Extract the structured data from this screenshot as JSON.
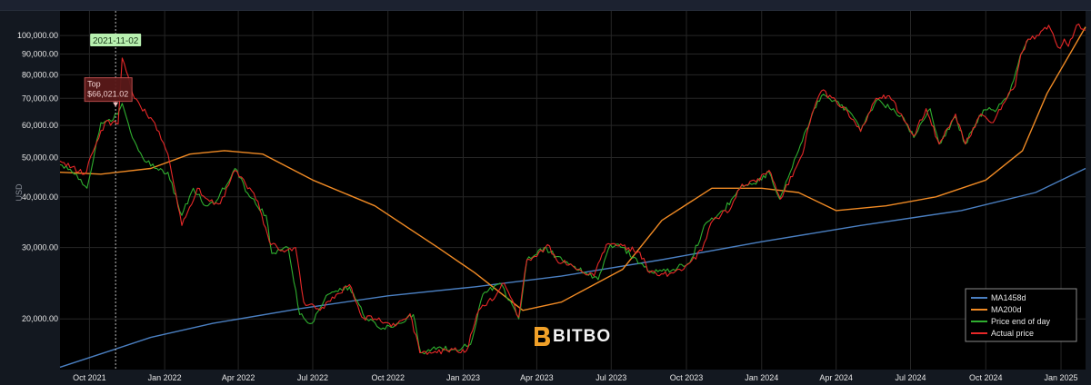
{
  "chart_data": {
    "type": "line",
    "ylabel": "USD",
    "y_scale": "log",
    "ylim": [
      15000,
      115000
    ],
    "xlim": [
      "2021-08-26",
      "2025-01-31"
    ],
    "y_ticks": [
      {
        "value": 20000,
        "label": "20,000.00"
      },
      {
        "value": 30000,
        "label": "30,000.00"
      },
      {
        "value": 40000,
        "label": "40,000.00"
      },
      {
        "value": 50000,
        "label": "50,000.00"
      },
      {
        "value": 60000,
        "label": "60,000.00"
      },
      {
        "value": 70000,
        "label": "70,000.00"
      },
      {
        "value": 80000,
        "label": "80,000.00"
      },
      {
        "value": 90000,
        "label": "90,000.00"
      },
      {
        "value": 100000,
        "label": "100,000.00"
      }
    ],
    "x_ticks": [
      {
        "date": "2021-10-01",
        "label": "Oct 2021"
      },
      {
        "date": "2022-01-01",
        "label": "Jan 2022"
      },
      {
        "date": "2022-04-01",
        "label": "Apr 2022"
      },
      {
        "date": "2022-07-01",
        "label": "Jul 2022"
      },
      {
        "date": "2022-10-01",
        "label": "Oct 2022"
      },
      {
        "date": "2023-01-01",
        "label": "Jan 2023"
      },
      {
        "date": "2023-04-01",
        "label": "Apr 2023"
      },
      {
        "date": "2023-07-01",
        "label": "Jul 2023"
      },
      {
        "date": "2023-10-01",
        "label": "Oct 2023"
      },
      {
        "date": "2024-01-01",
        "label": "Jan 2024"
      },
      {
        "date": "2024-04-01",
        "label": "Apr 2024"
      },
      {
        "date": "2024-07-01",
        "label": "Jul 2024"
      },
      {
        "date": "2024-10-01",
        "label": "Oct 2024"
      },
      {
        "date": "2025-01-01",
        "label": "Jan 2025"
      }
    ],
    "grid": true,
    "legend_position": "bottom-right",
    "series": [
      {
        "name": "MA1458d",
        "color": "#4a7fc1",
        "points": [
          [
            "2021-08-26",
            15200
          ],
          [
            "2021-10-15",
            16400
          ],
          [
            "2021-12-15",
            18000
          ],
          [
            "2022-03-01",
            19500
          ],
          [
            "2022-06-15",
            21200
          ],
          [
            "2022-10-01",
            22800
          ],
          [
            "2023-01-15",
            24000
          ],
          [
            "2023-05-01",
            25500
          ],
          [
            "2023-09-01",
            28000
          ],
          [
            "2024-01-01",
            31000
          ],
          [
            "2024-05-01",
            34000
          ],
          [
            "2024-09-01",
            37000
          ],
          [
            "2024-12-01",
            41000
          ],
          [
            "2025-01-31",
            47000
          ]
        ]
      },
      {
        "name": "MA200d",
        "color": "#f08a24",
        "points": [
          [
            "2021-08-26",
            46000
          ],
          [
            "2021-10-15",
            45500
          ],
          [
            "2021-12-15",
            47000
          ],
          [
            "2022-02-01",
            51000
          ],
          [
            "2022-03-15",
            52000
          ],
          [
            "2022-05-01",
            51000
          ],
          [
            "2022-07-01",
            44000
          ],
          [
            "2022-09-15",
            38000
          ],
          [
            "2022-12-01",
            30000
          ],
          [
            "2023-01-15",
            26000
          ],
          [
            "2023-03-15",
            21000
          ],
          [
            "2023-05-01",
            22000
          ],
          [
            "2023-07-15",
            26500
          ],
          [
            "2023-09-01",
            35000
          ],
          [
            "2023-11-01",
            42000
          ],
          [
            "2024-01-01",
            42000
          ],
          [
            "2024-02-15",
            41000
          ],
          [
            "2024-04-01",
            37000
          ],
          [
            "2024-06-01",
            38000
          ],
          [
            "2024-08-01",
            40000
          ],
          [
            "2024-10-01",
            44000
          ],
          [
            "2024-11-15",
            52000
          ],
          [
            "2024-12-15",
            72000
          ],
          [
            "2025-01-31",
            105000
          ]
        ]
      },
      {
        "name": "Price end of day",
        "color": "#2fae2f",
        "points": [
          [
            "2021-08-26",
            48000
          ],
          [
            "2021-09-10",
            46000
          ],
          [
            "2021-09-28",
            42000
          ],
          [
            "2021-10-15",
            61000
          ],
          [
            "2021-10-30",
            62000
          ],
          [
            "2021-11-10",
            68000
          ],
          [
            "2021-11-20",
            58000
          ],
          [
            "2021-12-05",
            50000
          ],
          [
            "2021-12-20",
            47000
          ],
          [
            "2022-01-05",
            46000
          ],
          [
            "2022-01-22",
            36000
          ],
          [
            "2022-02-05",
            42000
          ],
          [
            "2022-02-20",
            38000
          ],
          [
            "2022-03-05",
            39000
          ],
          [
            "2022-03-28",
            47000
          ],
          [
            "2022-04-15",
            40000
          ],
          [
            "2022-05-05",
            36000
          ],
          [
            "2022-05-12",
            29000
          ],
          [
            "2022-06-01",
            30000
          ],
          [
            "2022-06-15",
            20500
          ],
          [
            "2022-06-30",
            19500
          ],
          [
            "2022-07-20",
            23000
          ],
          [
            "2022-08-15",
            24000
          ],
          [
            "2022-09-05",
            20000
          ],
          [
            "2022-09-25",
            19000
          ],
          [
            "2022-10-15",
            19500
          ],
          [
            "2022-11-01",
            20500
          ],
          [
            "2022-11-10",
            16500
          ],
          [
            "2022-12-01",
            17000
          ],
          [
            "2022-12-20",
            16800
          ],
          [
            "2023-01-10",
            17300
          ],
          [
            "2023-01-25",
            23000
          ],
          [
            "2023-02-15",
            24500
          ],
          [
            "2023-03-10",
            20000
          ],
          [
            "2023-03-20",
            28000
          ],
          [
            "2023-04-10",
            30000
          ],
          [
            "2023-04-25",
            28500
          ],
          [
            "2023-05-15",
            27000
          ],
          [
            "2023-06-15",
            25000
          ],
          [
            "2023-06-30",
            30500
          ],
          [
            "2023-07-15",
            30000
          ],
          [
            "2023-08-20",
            26000
          ],
          [
            "2023-09-15",
            26500
          ],
          [
            "2023-10-05",
            27500
          ],
          [
            "2023-10-25",
            34500
          ],
          [
            "2023-11-15",
            37000
          ],
          [
            "2023-12-05",
            42000
          ],
          [
            "2023-12-25",
            43000
          ],
          [
            "2024-01-10",
            46000
          ],
          [
            "2024-01-23",
            39500
          ],
          [
            "2024-02-15",
            52000
          ],
          [
            "2024-03-05",
            66000
          ],
          [
            "2024-03-14",
            71000
          ],
          [
            "2024-04-01",
            69000
          ],
          [
            "2024-04-20",
            64000
          ],
          [
            "2024-05-01",
            58000
          ],
          [
            "2024-05-20",
            69000
          ],
          [
            "2024-06-10",
            66000
          ],
          [
            "2024-06-25",
            61000
          ],
          [
            "2024-07-05",
            56000
          ],
          [
            "2024-07-25",
            66000
          ],
          [
            "2024-08-05",
            54000
          ],
          [
            "2024-08-25",
            63000
          ],
          [
            "2024-09-06",
            54000
          ],
          [
            "2024-09-28",
            65500
          ],
          [
            "2024-10-15",
            66000
          ],
          [
            "2024-10-30",
            72000
          ],
          [
            "2024-11-12",
            89000
          ],
          [
            "2024-11-22",
            98000
          ]
        ]
      },
      {
        "name": "Actual price",
        "color": "#e62828",
        "points": [
          [
            "2021-08-26",
            49000
          ],
          [
            "2021-09-25",
            45500
          ],
          [
            "2021-10-20",
            61000
          ],
          [
            "2021-11-05",
            60500
          ],
          [
            "2021-11-10",
            88000
          ],
          [
            "2021-11-25",
            70000
          ],
          [
            "2021-12-10",
            64000
          ],
          [
            "2021-12-25",
            58000
          ],
          [
            "2022-01-05",
            51000
          ],
          [
            "2022-01-22",
            34000
          ],
          [
            "2022-02-10",
            42000
          ],
          [
            "2022-02-25",
            39000
          ],
          [
            "2022-03-10",
            38500
          ],
          [
            "2022-03-28",
            46500
          ],
          [
            "2022-04-10",
            43000
          ],
          [
            "2022-04-25",
            39000
          ],
          [
            "2022-05-09",
            31000
          ],
          [
            "2022-05-25",
            29500
          ],
          [
            "2022-06-10",
            30000
          ],
          [
            "2022-06-20",
            22000
          ],
          [
            "2022-07-10",
            21000
          ],
          [
            "2022-07-30",
            23000
          ],
          [
            "2022-08-15",
            24300
          ],
          [
            "2022-08-30",
            20200
          ],
          [
            "2022-09-15",
            20000
          ],
          [
            "2022-10-10",
            19200
          ],
          [
            "2022-10-28",
            20600
          ],
          [
            "2022-11-09",
            16500
          ],
          [
            "2022-11-25",
            16500
          ],
          [
            "2022-12-20",
            16800
          ],
          [
            "2023-01-05",
            16700
          ],
          [
            "2023-01-20",
            21000
          ],
          [
            "2023-02-10",
            22800
          ],
          [
            "2023-02-20",
            24500
          ],
          [
            "2023-03-10",
            20200
          ],
          [
            "2023-03-20",
            28000
          ],
          [
            "2023-04-01",
            28500
          ],
          [
            "2023-04-14",
            30500
          ],
          [
            "2023-04-25",
            28000
          ],
          [
            "2023-05-15",
            27000
          ],
          [
            "2023-06-10",
            25500
          ],
          [
            "2023-06-25",
            30500
          ],
          [
            "2023-07-15",
            30300
          ],
          [
            "2023-08-05",
            29200
          ],
          [
            "2023-08-17",
            26000
          ],
          [
            "2023-09-10",
            25800
          ],
          [
            "2023-09-25",
            26300
          ],
          [
            "2023-10-20",
            29500
          ],
          [
            "2023-10-31",
            34500
          ],
          [
            "2023-11-25",
            37800
          ],
          [
            "2023-12-08",
            43000
          ],
          [
            "2023-12-25",
            43500
          ],
          [
            "2024-01-10",
            46500
          ],
          [
            "2024-01-24",
            39500
          ],
          [
            "2024-02-20",
            51000
          ],
          [
            "2024-02-29",
            61000
          ],
          [
            "2024-03-05",
            66000
          ],
          [
            "2024-03-14",
            73000
          ],
          [
            "2024-04-01",
            69000
          ],
          [
            "2024-04-15",
            65000
          ],
          [
            "2024-05-01",
            58000
          ],
          [
            "2024-05-20",
            70000
          ],
          [
            "2024-06-05",
            71000
          ],
          [
            "2024-06-25",
            61000
          ],
          [
            "2024-07-05",
            56500
          ],
          [
            "2024-07-20",
            66000
          ],
          [
            "2024-08-05",
            54000
          ],
          [
            "2024-08-25",
            64000
          ],
          [
            "2024-09-06",
            54000
          ],
          [
            "2024-09-25",
            64000
          ],
          [
            "2024-10-10",
            61000
          ],
          [
            "2024-10-29",
            72000
          ],
          [
            "2024-11-06",
            75000
          ],
          [
            "2024-11-13",
            90000
          ],
          [
            "2024-11-22",
            98000
          ],
          [
            "2024-12-05",
            100000
          ],
          [
            "2024-12-17",
            106000
          ],
          [
            "2024-12-25",
            97000
          ],
          [
            "2024-12-31",
            93000
          ],
          [
            "2025-01-05",
            98000
          ],
          [
            "2025-01-10",
            94000
          ],
          [
            "2025-01-20",
            106000
          ],
          [
            "2025-01-31",
            103000
          ]
        ]
      }
    ],
    "annotations": {
      "marker_date": "2021-11-02",
      "marker_label": "2021-11-02",
      "top_title": "Top",
      "top_value": "$66,021.02",
      "top_point": [
        "2021-11-02",
        66021
      ]
    }
  },
  "branding": {
    "logo_text": "BITBO",
    "accent": "#f0a028"
  },
  "colors": {
    "background": "#000000",
    "frame": "#131820",
    "grid": "#262626"
  }
}
